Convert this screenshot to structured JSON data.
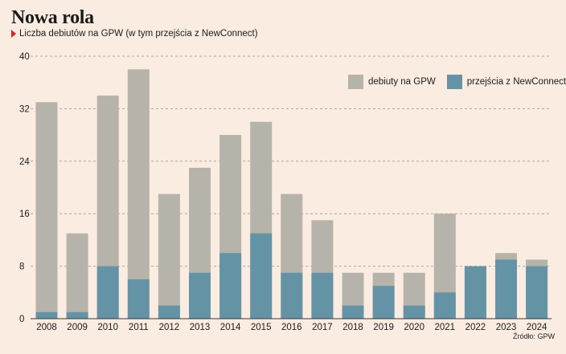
{
  "header": {
    "title": "Nowa rola",
    "subtitle": "Liczba debiutów na GPW (w tym przejścia z NewConnect)"
  },
  "footer": {
    "source": "Źródło: GPW"
  },
  "colors": {
    "background": "#fbece1",
    "total": "#b6b3aa",
    "newconnect": "#6593a6",
    "accent_marker": "#d8202a",
    "grid": "#aaa69e",
    "axis": "#3a3a3a"
  },
  "legend": {
    "placement": "top-right",
    "items": [
      {
        "label": "debiuty na GPW",
        "color": "#b6b3aa"
      },
      {
        "label": "przejścia z NewConnect",
        "color": "#6593a6"
      }
    ]
  },
  "chart_data": {
    "type": "bar",
    "stacked_overlay": true,
    "categories": [
      "2008",
      "2009",
      "2010",
      "2011",
      "2012",
      "2013",
      "2014",
      "2015",
      "2016",
      "2017",
      "2018",
      "2019",
      "2020",
      "2021",
      "2022",
      "2023",
      "2024"
    ],
    "series": [
      {
        "name": "debiuty na GPW",
        "values": [
          33,
          13,
          34,
          38,
          19,
          23,
          28,
          30,
          19,
          15,
          7,
          7,
          7,
          16,
          8,
          10,
          9
        ]
      },
      {
        "name": "przejścia z NewConnect",
        "values": [
          1,
          1,
          8,
          6,
          2,
          7,
          10,
          13,
          7,
          7,
          2,
          5,
          2,
          4,
          8,
          9,
          8
        ]
      }
    ],
    "ylim": [
      0,
      40
    ],
    "yticks": [
      0,
      8,
      16,
      24,
      32,
      40
    ],
    "grid": true,
    "title": "Nowa rola",
    "xlabel": "",
    "ylabel": ""
  }
}
